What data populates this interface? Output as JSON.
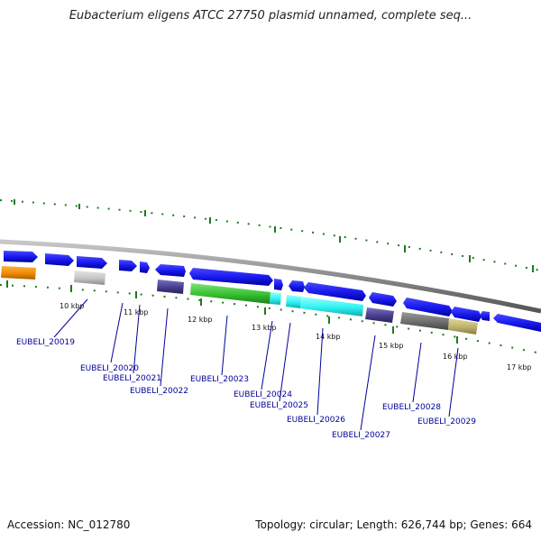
{
  "header": {
    "title": "Eubacterium eligens ATCC 27750 plasmid unnamed, complete seq..."
  },
  "footer": {
    "accession": "Accession: NC_012780",
    "summary": "Topology: circular; Length: 626,744 bp; Genes: 664"
  },
  "colors": {
    "forward_gene": "#1a1aee",
    "backbone": "#8a8a8a",
    "tick": "#1e7a1e",
    "label": "#00009c"
  },
  "scale_labels": [
    "10 kbp",
    "11 kbp",
    "12 kbp",
    "13 kbp",
    "14 kbp",
    "15 kbp",
    "16 kbp",
    "17 kbp"
  ],
  "gene_labels": [
    "EUBELI_20019",
    "EUBELI_20020",
    "EUBELI_20021",
    "EUBELI_20022",
    "EUBELI_20023",
    "EUBELI_20024",
    "EUBELI_20025",
    "EUBELI_20026",
    "EUBELI_20027",
    "EUBELI_20028",
    "EUBELI_20029"
  ]
}
